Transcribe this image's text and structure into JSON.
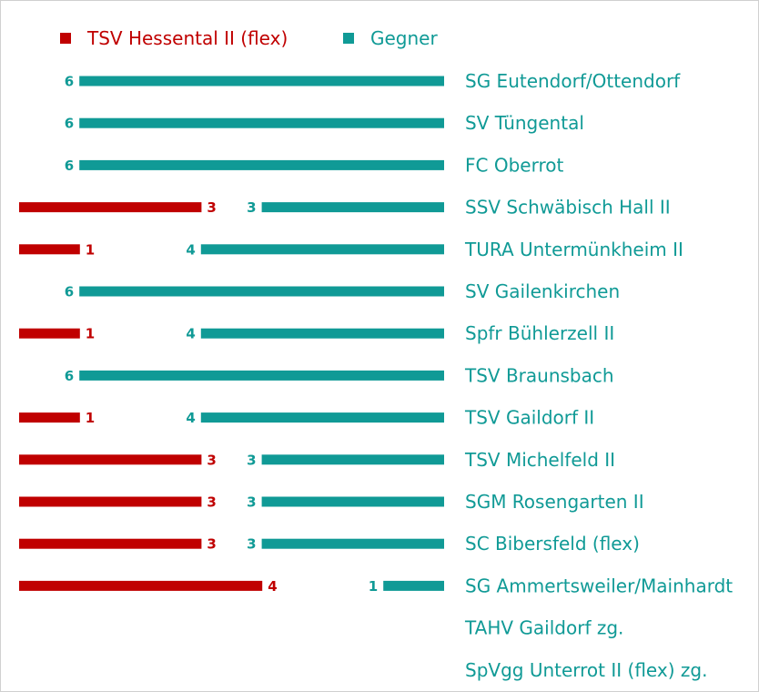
{
  "chart_data": {
    "type": "bar",
    "orientation": "horizontal",
    "layout": "diverging",
    "legend_position": "top",
    "grid": false,
    "xlim": [
      0,
      6
    ],
    "categories": [
      "SG Eutendorf/Ottendorf",
      "SV Tüngental",
      "FC Oberrot",
      "SSV Schwäbisch Hall II",
      "TURA Untermünkheim II",
      "SV Gailenkirchen",
      "Spfr Bühlerzell II",
      "TSV Braunsbach",
      "TSV Gaildorf II",
      "TSV Michelfeld II",
      "SGM Rosengarten II",
      "SC Bibersfeld (flex)",
      "SG Ammertsweiler/Mainhardt",
      "TAHV Gaildorf zg.",
      "SpVgg Unterrot II (flex) zg."
    ],
    "series": [
      {
        "name": "TSV Hessental II (flex)",
        "color": "#c00000",
        "values": [
          0,
          0,
          0,
          3,
          1,
          0,
          1,
          0,
          1,
          3,
          3,
          3,
          4,
          null,
          null
        ]
      },
      {
        "name": "Gegner",
        "color": "#109a96",
        "values": [
          6,
          6,
          6,
          3,
          4,
          6,
          4,
          6,
          4,
          3,
          3,
          3,
          1,
          null,
          null
        ]
      }
    ]
  }
}
